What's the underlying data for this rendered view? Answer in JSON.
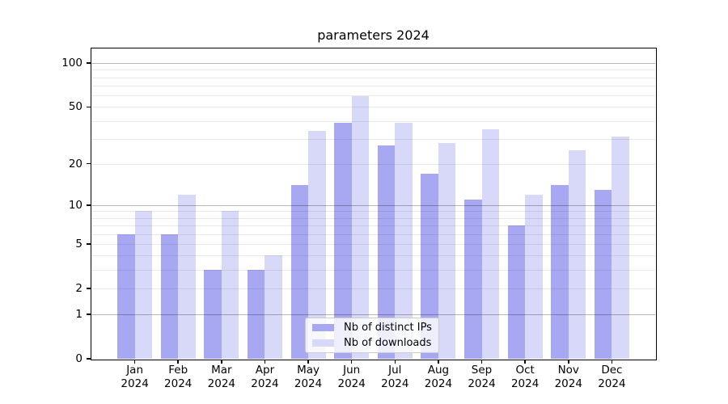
{
  "page": {
    "background": "#ffffff"
  },
  "chart_data": {
    "type": "bar",
    "title": "parameters 2024",
    "categories": [
      "Jan",
      "Feb",
      "Mar",
      "Apr",
      "May",
      "Jun",
      "Jul",
      "Aug",
      "Sep",
      "Oct",
      "Nov",
      "Dec"
    ],
    "x_year_suffix": "2024",
    "series": [
      {
        "name": "Nb of distinct IPs",
        "color": "#a8a8f2",
        "values": [
          6,
          6,
          3,
          3,
          14,
          39,
          27,
          17,
          11,
          7,
          14,
          13
        ]
      },
      {
        "name": "Nb of downloads",
        "color": "#d8d9f8",
        "values": [
          9,
          12,
          9,
          4,
          34,
          59,
          39,
          28,
          35,
          12,
          25,
          31
        ]
      }
    ],
    "xlabel": "",
    "ylabel": "",
    "y_scale": "symlog (position proportional to ln(1+v))",
    "y_ticks": [
      0,
      1,
      2,
      5,
      10,
      20,
      50,
      100
    ],
    "ylim": [
      0,
      126
    ],
    "grid": "on",
    "grid_minor_values": [
      2,
      3,
      4,
      5,
      6,
      7,
      8,
      9,
      20,
      30,
      40,
      50,
      60,
      70,
      80,
      90
    ],
    "grid_major_values": [
      1,
      10,
      100
    ],
    "legend_position": "lower center (inside plot)"
  },
  "colors": {
    "bar_distinct_ips": "#a8a8f2",
    "bar_downloads": "#d8d9f8",
    "grid_minor": "#e9e9e9",
    "grid_major": "#b8b8b8",
    "axis_line": "#000000",
    "legend_border": "#cccccc",
    "legend_background": "rgba(255,255,255,0.8)"
  }
}
